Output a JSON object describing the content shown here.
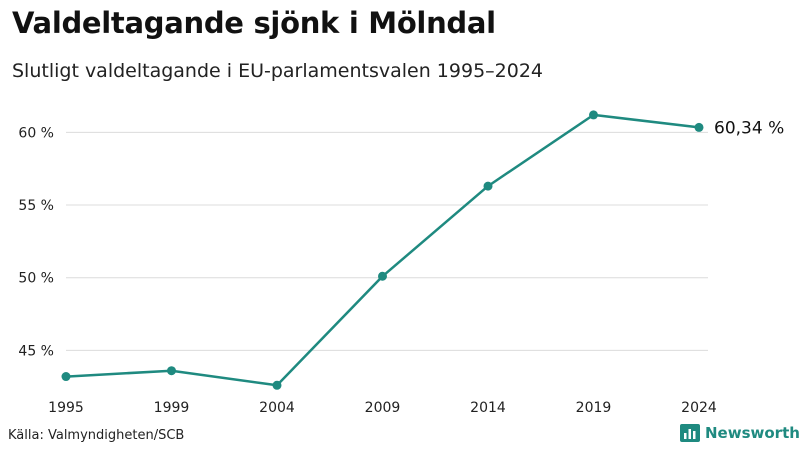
{
  "header": {
    "title": "Valdeltagande sjönk i Mölndal",
    "subtitle": "Slutligt valdeltagande i EU-parlamentsvalen 1995–2024"
  },
  "footer": {
    "source": "Källa: Valmyndigheten/SCB",
    "brand": "Newsworthy",
    "brand_icon": "bar-chart-logo-icon"
  },
  "colors": {
    "line": "#1f8a80",
    "grid": "#dcdcdc",
    "text": "#222222",
    "brand": "#1f8a80"
  },
  "chart_data": {
    "type": "line",
    "title": "Valdeltagande sjönk i Mölndal",
    "subtitle": "Slutligt valdeltagande i EU-parlamentsvalen 1995–2024",
    "x": [
      "1995",
      "1999",
      "2004",
      "2009",
      "2014",
      "2019",
      "2024"
    ],
    "series": [
      {
        "name": "Valdeltagande",
        "values": [
          43.2,
          43.6,
          42.6,
          50.1,
          56.3,
          61.2,
          60.34
        ]
      }
    ],
    "y_ticks": [
      45,
      50,
      55,
      60
    ],
    "y_tick_labels": [
      "45 %",
      "50 %",
      "55 %",
      "60 %"
    ],
    "ylim": [
      42,
      62.5
    ],
    "end_label": "60,34 %",
    "xlabel": "",
    "ylabel": "",
    "grid": true
  }
}
